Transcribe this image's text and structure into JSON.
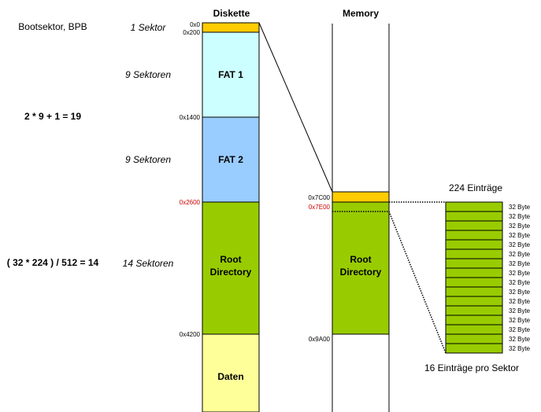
{
  "headers": {
    "disk": "Diskette",
    "memory": "Memory"
  },
  "left_notes": {
    "boot": "Bootsektor, BPB",
    "fat_calc": "2 * 9 + 1 = 19",
    "root_calc": "( 32 * 224 ) / 512 = 14"
  },
  "sector_counts": {
    "boot": "1 Sektor",
    "fat1": "9 Sektoren",
    "fat2": "9 Sektoren",
    "root": "14 Sektoren"
  },
  "disk_addresses": {
    "a0": "0x0",
    "a200": "0x200",
    "a1400": "0x1400",
    "a2600": "0x2600",
    "a4200": "0x4200"
  },
  "disk_blocks": {
    "fat1": "FAT 1",
    "fat2": "FAT 2",
    "root_line1": "Root",
    "root_line2": "Directory",
    "data": "Daten"
  },
  "memory_addresses": {
    "a7c00": "0x7C00",
    "a7e00": "0x7E00",
    "a9a00": "0x9A00"
  },
  "memory_blocks": {
    "root_line1": "Root",
    "root_line2": "Directory"
  },
  "entries": {
    "title": "224 Einträge",
    "footer": "16 Einträge pro Sektor",
    "entry_label": "32 Byte",
    "count": 16
  },
  "colors": {
    "boot": "#FFCC00",
    "fat1": "#CCFFFF",
    "fat2": "#99CCFF",
    "root": "#99CC00",
    "data": "#FFFF99",
    "highlight_address": "#CC0000"
  }
}
